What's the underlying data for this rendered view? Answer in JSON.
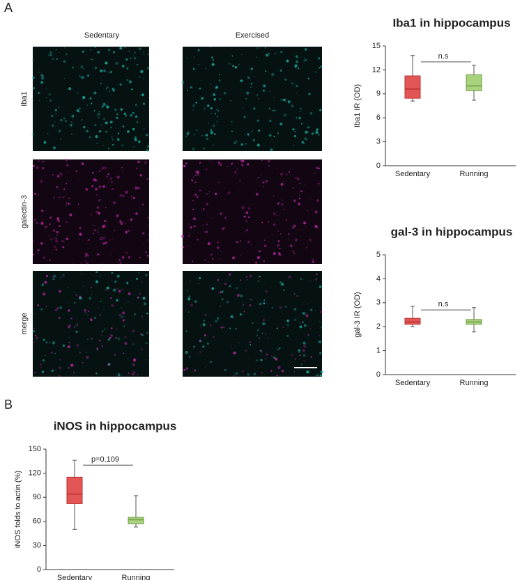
{
  "panels": [
    "A",
    "B"
  ],
  "images": {
    "columns": [
      "Sedentary",
      "Exercised"
    ],
    "rows": [
      "Iba1",
      "galectin-3",
      "merge"
    ]
  },
  "chart_data": [
    {
      "type": "box",
      "title": "Iba1 in hippocampus",
      "ylabel": "Iba1 IR (OD)",
      "categories": [
        "Sedentary",
        "Running"
      ],
      "colors": [
        "#e25656",
        "#a9d27f"
      ],
      "edge_colors": [
        "#b83030",
        "#6b9a42"
      ],
      "boxes": [
        {
          "min": 8.1,
          "q1": 8.45,
          "median": 9.6,
          "q3": 11.25,
          "max": 13.8
        },
        {
          "min": 8.2,
          "q1": 9.4,
          "median": 10.0,
          "q3": 11.4,
          "max": 12.6
        }
      ],
      "annotation": {
        "text": "n.s",
        "y": 13
      },
      "ylim": [
        0,
        15
      ],
      "yticks": [
        0,
        3,
        6,
        9,
        12,
        15
      ]
    },
    {
      "type": "box",
      "title": "gal-3 in hippocampus",
      "ylabel": "gal-3 IR (OD)",
      "categories": [
        "Sedentary",
        "Running"
      ],
      "colors": [
        "#e25656",
        "#a9d27f"
      ],
      "edge_colors": [
        "#b83030",
        "#6b9a42"
      ],
      "boxes": [
        {
          "min": 2.0,
          "q1": 2.1,
          "median": 2.2,
          "q3": 2.35,
          "max": 2.85
        },
        {
          "min": 1.78,
          "q1": 2.1,
          "median": 2.2,
          "q3": 2.3,
          "max": 2.8
        }
      ],
      "annotation": {
        "text": "n.s",
        "y": 2.7
      },
      "ylim": [
        0,
        5
      ],
      "yticks": [
        0,
        1,
        2,
        3,
        4,
        5
      ]
    },
    {
      "type": "box",
      "title": "iNOS in hippocampus",
      "ylabel": "iNOS folds to actin (%)",
      "categories": [
        "Sedentary",
        "Running"
      ],
      "colors": [
        "#e25656",
        "#a9d27f"
      ],
      "edge_colors": [
        "#b83030",
        "#6b9a42"
      ],
      "boxes": [
        {
          "min": 50,
          "q1": 82,
          "median": 94,
          "q3": 115,
          "max": 136
        },
        {
          "min": 53,
          "q1": 57,
          "median": 62,
          "q3": 65,
          "max": 92
        }
      ],
      "annotation": {
        "text": "p=0.109",
        "y": 130
      },
      "ylim": [
        0,
        150
      ],
      "yticks": [
        0,
        30,
        60,
        90,
        120,
        150
      ]
    }
  ]
}
